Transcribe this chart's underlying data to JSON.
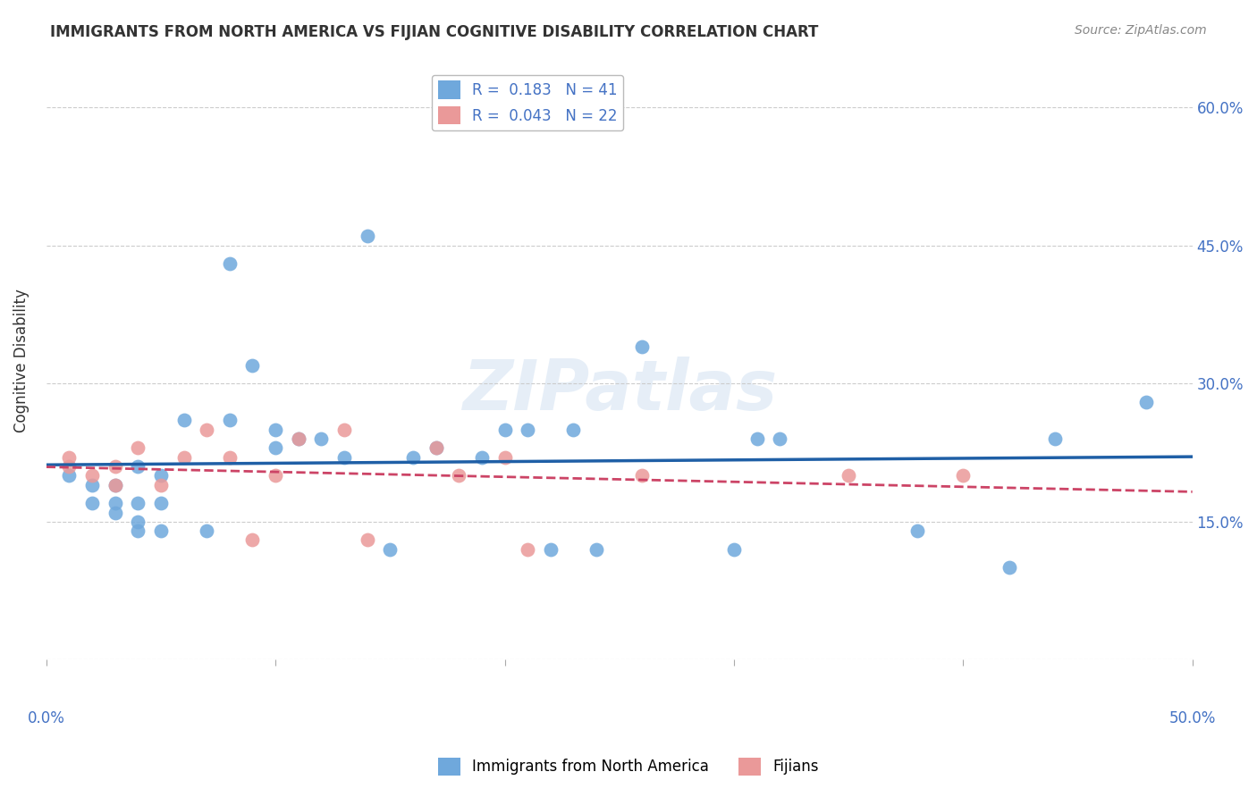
{
  "title": "IMMIGRANTS FROM NORTH AMERICA VS FIJIAN COGNITIVE DISABILITY CORRELATION CHART",
  "source": "Source: ZipAtlas.com",
  "ylabel": "Cognitive Disability",
  "yticks": [
    0.0,
    0.15,
    0.3,
    0.45,
    0.6
  ],
  "ytick_labels": [
    "",
    "15.0%",
    "30.0%",
    "45.0%",
    "60.0%"
  ],
  "xlim": [
    0.0,
    0.5
  ],
  "ylim": [
    0.0,
    0.65
  ],
  "blue_color": "#6fa8dc",
  "pink_color": "#ea9999",
  "line_blue": "#1f5fa6",
  "line_pink": "#cc4466",
  "watermark": "ZIPatlas",
  "blue_x": [
    0.01,
    0.02,
    0.02,
    0.03,
    0.03,
    0.03,
    0.04,
    0.04,
    0.04,
    0.04,
    0.05,
    0.05,
    0.05,
    0.06,
    0.07,
    0.08,
    0.08,
    0.09,
    0.1,
    0.1,
    0.11,
    0.12,
    0.13,
    0.14,
    0.15,
    0.16,
    0.17,
    0.19,
    0.2,
    0.21,
    0.22,
    0.23,
    0.24,
    0.26,
    0.3,
    0.31,
    0.32,
    0.38,
    0.42,
    0.44,
    0.48
  ],
  "blue_y": [
    0.2,
    0.19,
    0.17,
    0.19,
    0.16,
    0.17,
    0.21,
    0.17,
    0.15,
    0.14,
    0.2,
    0.17,
    0.14,
    0.26,
    0.14,
    0.43,
    0.26,
    0.32,
    0.25,
    0.23,
    0.24,
    0.24,
    0.22,
    0.46,
    0.12,
    0.22,
    0.23,
    0.22,
    0.25,
    0.25,
    0.12,
    0.25,
    0.12,
    0.34,
    0.12,
    0.24,
    0.24,
    0.14,
    0.1,
    0.24,
    0.28
  ],
  "pink_x": [
    0.01,
    0.01,
    0.02,
    0.03,
    0.03,
    0.04,
    0.05,
    0.06,
    0.07,
    0.08,
    0.09,
    0.1,
    0.11,
    0.13,
    0.14,
    0.17,
    0.18,
    0.2,
    0.21,
    0.26,
    0.35,
    0.4
  ],
  "pink_y": [
    0.22,
    0.21,
    0.2,
    0.21,
    0.19,
    0.23,
    0.19,
    0.22,
    0.25,
    0.22,
    0.13,
    0.2,
    0.24,
    0.25,
    0.13,
    0.23,
    0.2,
    0.22,
    0.12,
    0.2,
    0.2,
    0.2
  ]
}
